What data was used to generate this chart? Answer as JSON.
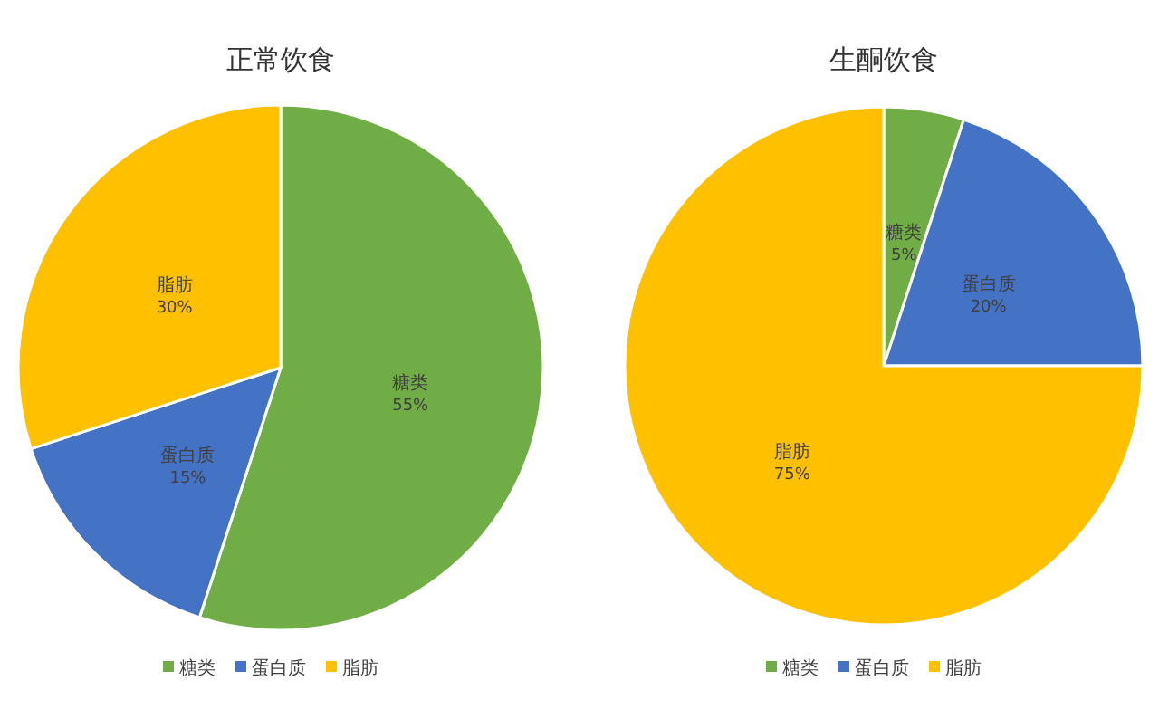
{
  "chart_data": [
    {
      "type": "pie",
      "title": "正常饮食",
      "categories": [
        "糖类",
        "蛋白质",
        "脂肪"
      ],
      "values": [
        55,
        15,
        30
      ],
      "colors": [
        "#70ad47",
        "#4472c4",
        "#ffc000"
      ],
      "value_labels": [
        "55%",
        "15%",
        "30%"
      ],
      "legend": "bottom"
    },
    {
      "type": "pie",
      "title": "生酮饮食",
      "categories": [
        "糖类",
        "蛋白质",
        "脂肪"
      ],
      "values": [
        5,
        20,
        75
      ],
      "colors": [
        "#70ad47",
        "#4472c4",
        "#ffc000"
      ],
      "value_labels": [
        "5%",
        "20%",
        "75%"
      ],
      "legend": "bottom"
    }
  ]
}
